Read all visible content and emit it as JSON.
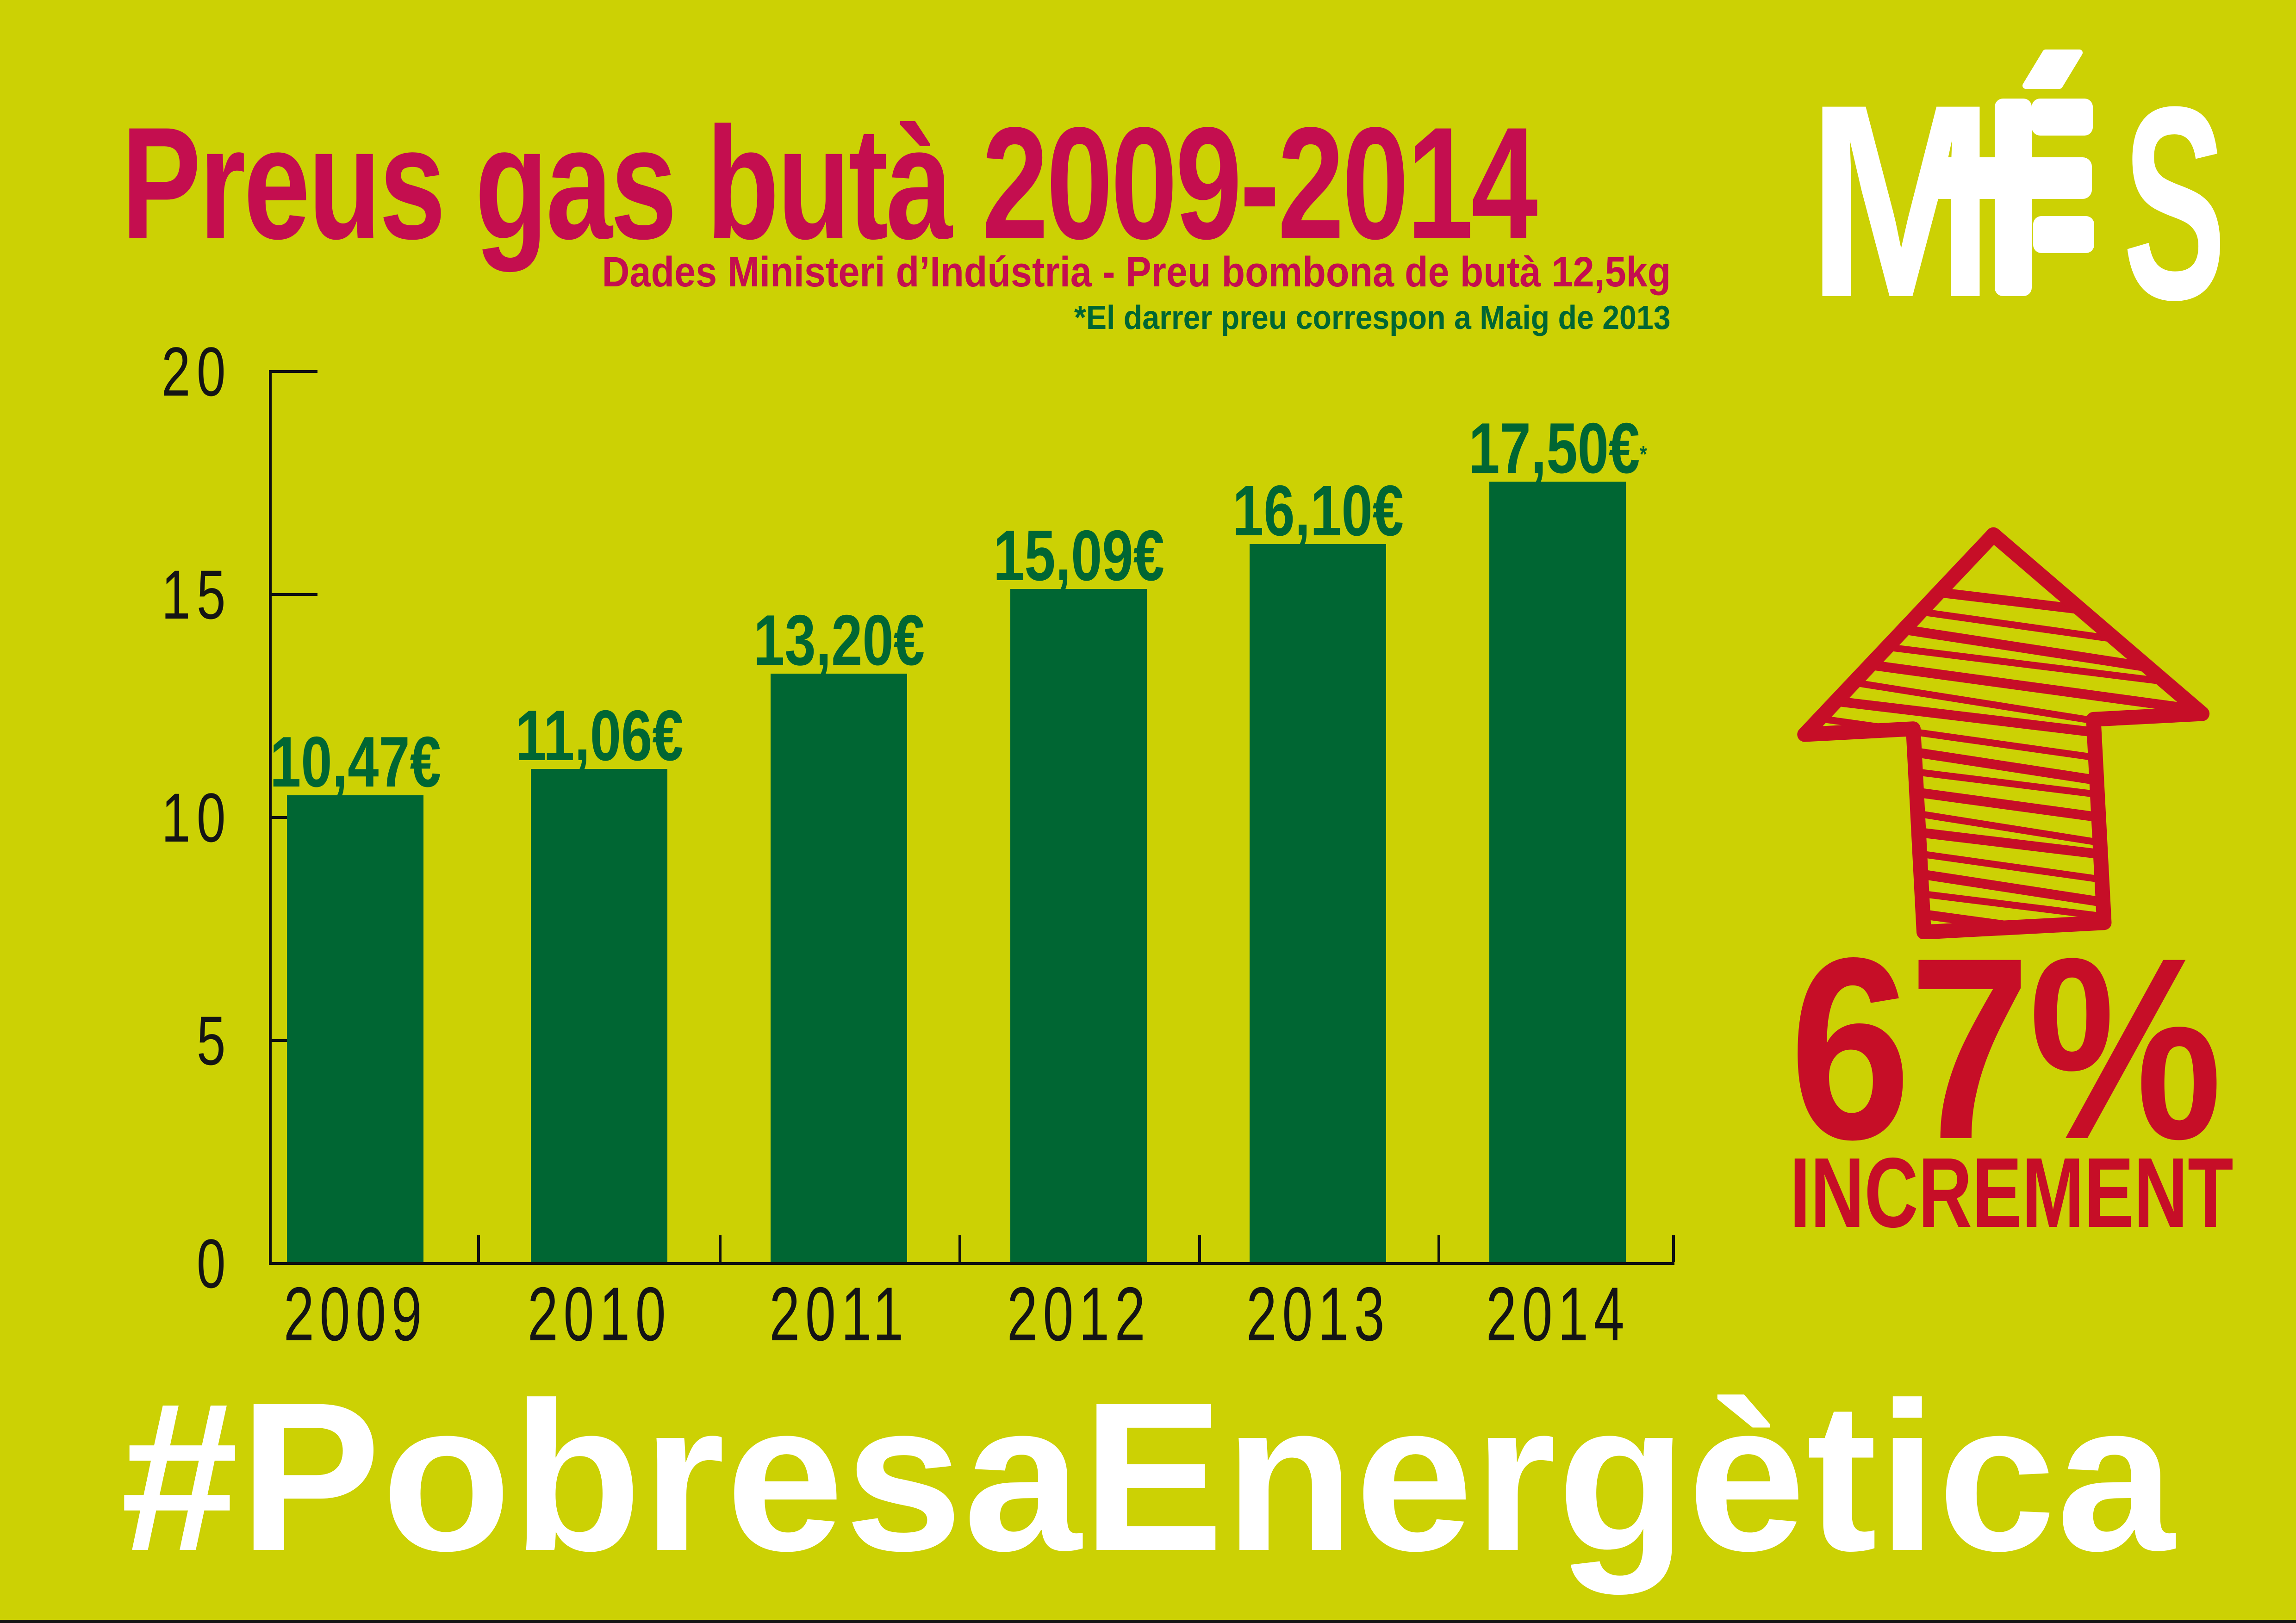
{
  "title": {
    "text": "Preus gas butà 2009-2014"
  },
  "subtitle": {
    "text": "Dades Ministeri d’Indústria - Preu bombona de butà 12,5kg"
  },
  "footnote": {
    "text": "*El darrer preu correspon a Maig de 2013"
  },
  "logo": {
    "name": "MÉS",
    "letter_m": "M",
    "letter_s": "S"
  },
  "chart_data": {
    "type": "bar",
    "title": "Preus gas butà 2009-2014",
    "categories": [
      "2009",
      "2010",
      "2011",
      "2012",
      "2013",
      "2014"
    ],
    "values": [
      10.47,
      11.06,
      13.2,
      15.09,
      16.1,
      17.5
    ],
    "value_labels": [
      "10,47€",
      "11,06€",
      "13,20€",
      "15,09€",
      "16,10€",
      "17,50€"
    ],
    "asterisk_index": 5,
    "asterisk_char": "*",
    "xlabel": "",
    "ylabel": "",
    "ylim": [
      0,
      20
    ],
    "yticks": [
      0,
      5,
      10,
      15,
      20
    ],
    "grid": false,
    "legend": false,
    "bar_color": "#006633",
    "value_label_color": "#006633",
    "axis_color": "#101010"
  },
  "increment": {
    "percent": "67%",
    "label": "INCREMENT",
    "arrow_icon": "sketched-up-arrow"
  },
  "hashtag": {
    "text": "#PobresaEnergètica"
  },
  "colors": {
    "background": "#ccd104",
    "title_crimson": "#c40e4f",
    "dark_green": "#006633",
    "alert_red": "#c60e27",
    "white": "#ffffff",
    "axis_black": "#101010"
  }
}
